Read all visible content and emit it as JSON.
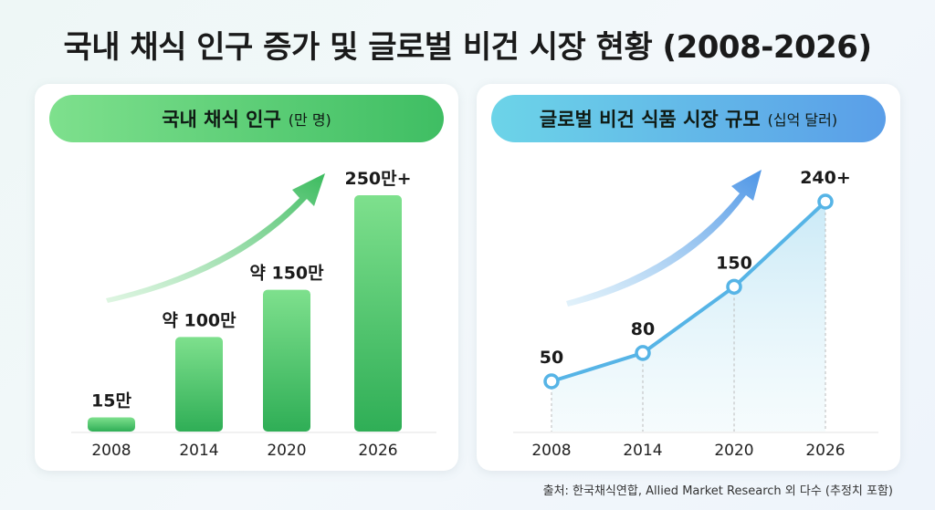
{
  "title": "국내 채식 인구 증가 및 글로벌 비건 시장 현황 (2008-2026)",
  "source": "출처: 한국채식연합, Allied Market Research 외 다수 (추정치 포함)",
  "colors": {
    "green_light": "#7ee08d",
    "green_dark": "#2fae56",
    "blue_light": "#6cd4e8",
    "blue_dark": "#4a8fe0",
    "line": "#56b4e6"
  },
  "chart_data": [
    {
      "type": "bar",
      "title": "국내 채식 인구",
      "unit": "(만 명)",
      "categories": [
        "2008",
        "2014",
        "2020",
        "2026"
      ],
      "values": [
        15,
        100,
        150,
        250
      ],
      "data_labels": [
        "15만",
        "약 100만",
        "약 150만",
        "250만+"
      ],
      "grid": false,
      "trend_arrow": true
    },
    {
      "type": "area",
      "title": "글로벌 비건 식품 시장 규모",
      "unit": "(십억 달러)",
      "categories": [
        "2008",
        "2014",
        "2020",
        "2026"
      ],
      "values": [
        50,
        80,
        150,
        240
      ],
      "data_labels": [
        "50",
        "80",
        "150",
        "240+"
      ],
      "grid": false,
      "trend_arrow": true
    }
  ]
}
